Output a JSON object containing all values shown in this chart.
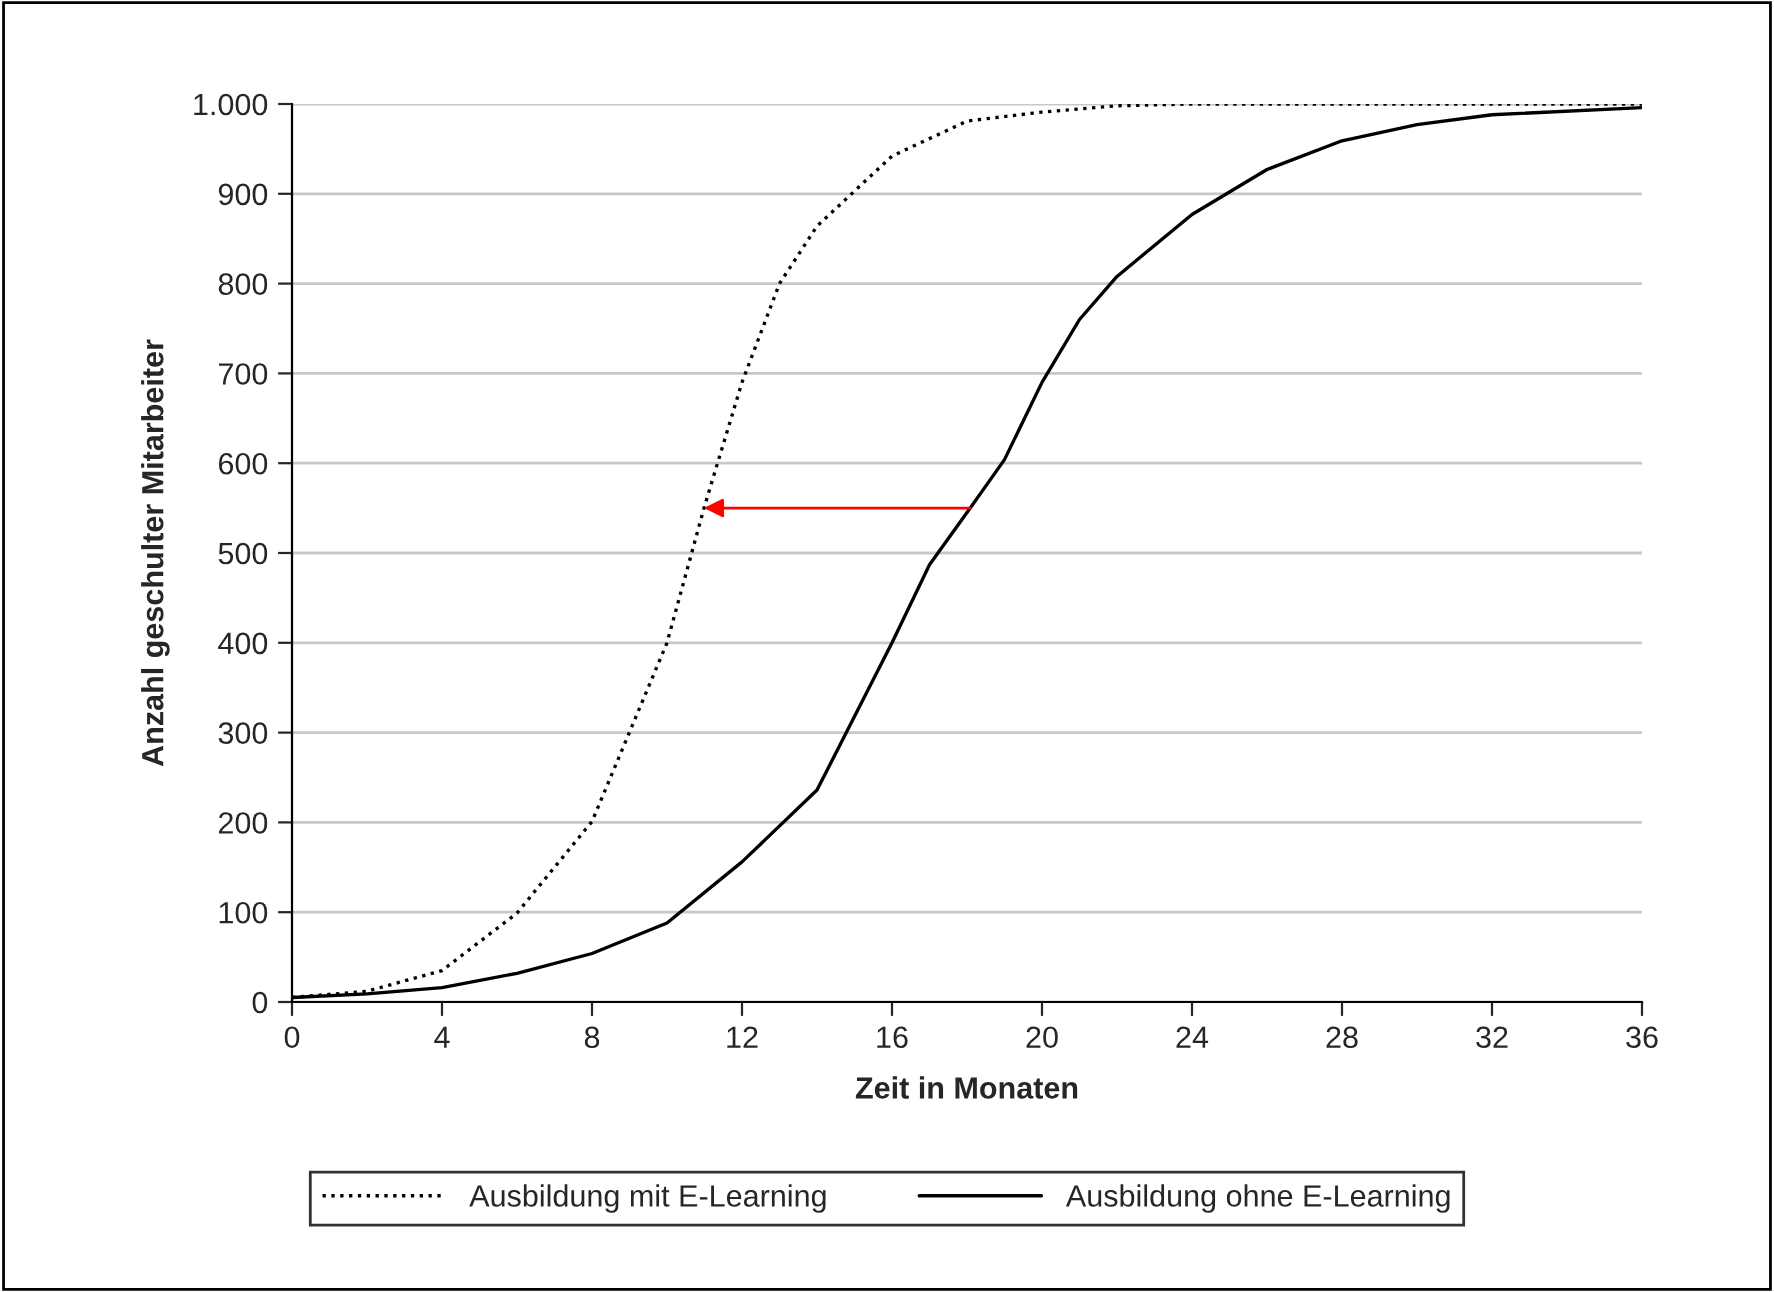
{
  "chart_data": {
    "type": "line",
    "xlabel": "Zeit in Monaten",
    "ylabel": "Anzahl geschulter Mitarbeiter",
    "xlim": [
      0,
      36
    ],
    "xticks": [
      0,
      4,
      8,
      12,
      16,
      20,
      24,
      28,
      32,
      36
    ],
    "ylim": [
      0,
      1000
    ],
    "yticks": [
      0,
      100,
      200,
      300,
      400,
      500,
      600,
      700,
      800,
      900,
      {
        "value": 1000,
        "label": "1.000"
      }
    ],
    "grid": "y",
    "legend": "bottom",
    "marker": "none",
    "series": [
      {
        "name": "Ausbildung mit E-Learning",
        "color": "#000000",
        "line_style": "dotted",
        "x": [
          0,
          2,
          4,
          6,
          8,
          10,
          11,
          12,
          13,
          14,
          16,
          18,
          20,
          22,
          24,
          28,
          32,
          36
        ],
        "values": [
          5,
          12,
          35,
          99,
          201,
          400,
          552,
          690,
          800,
          864,
          942,
          981,
          991,
          998,
          1000,
          1000,
          1000,
          1000
        ]
      },
      {
        "name": "Ausbildung ohne E-Learning",
        "color": "#000000",
        "line_style": "solid",
        "x": [
          0,
          2,
          4,
          6,
          8,
          10,
          12,
          14,
          16,
          17,
          18,
          19,
          20,
          21,
          22,
          24,
          26,
          28,
          30,
          32,
          36
        ],
        "values": [
          5,
          9,
          16,
          32,
          54,
          88,
          156,
          236,
          400,
          487,
          545,
          604,
          690,
          760,
          808,
          877,
          927,
          959,
          977,
          988,
          996
        ]
      }
    ]
  }
}
